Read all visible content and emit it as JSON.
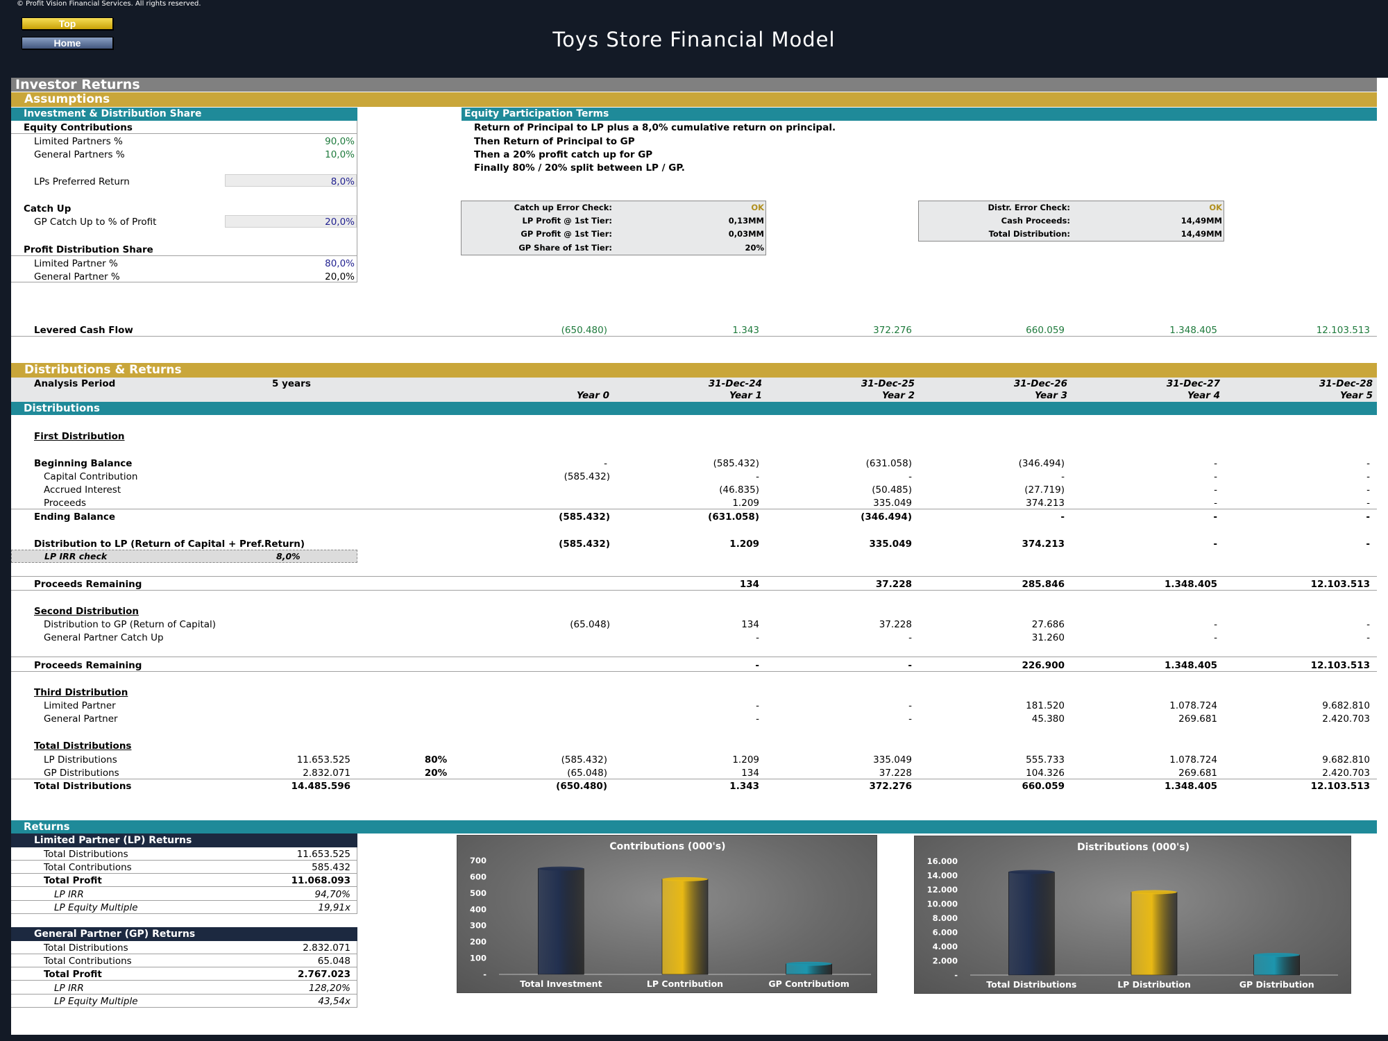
{
  "header": {
    "copyright": "© Profit Vision Financial Services. All rights reserved.",
    "top_button": "Top",
    "home_button": "Home",
    "title": "Toys Store Financial Model"
  },
  "sections": {
    "investor_returns": "Investor Returns",
    "assumptions": "Assumptions",
    "investment_distribution_share": "Investment & Distribution Share",
    "equity_participation_terms": "Equity Participation Terms",
    "distributions_returns": "Distributions & Returns",
    "distributions": "Distributions",
    "returns": "Returns"
  },
  "assumptions": {
    "equity_contributions": "Equity Contributions",
    "lp_pct_label": "Limited Partners %",
    "lp_pct": "90,0%",
    "gp_pct_label": "General Partners %",
    "gp_pct": "10,0%",
    "pref_return_label": "LPs Preferred Return",
    "pref_return": "8,0%",
    "catch_up": "Catch Up",
    "gp_catch_up_label": "GP Catch Up to % of Profit",
    "gp_catch_up": "20,0%",
    "profit_dist_share": "Profit Distribution Share",
    "lp_share_label": "Limited Partner %",
    "lp_share": "80,0%",
    "gp_share_label": "General Partner %",
    "gp_share": "20,0%"
  },
  "terms": {
    "line1": "Return of Principal to LP plus a 8,0% cumulative return on principal.",
    "line2": "Then Return of Principal to GP",
    "line3": "Then a 20% profit catch up for GP",
    "line4": "Finally 80% / 20% split between LP / GP."
  },
  "checkbox1": {
    "r1_label": "Catch up Error Check:",
    "r1_value": "OK",
    "r2_label": "LP Profit @ 1st Tier:",
    "r2_value": "0,13MM",
    "r3_label": "GP Profit @ 1st Tier:",
    "r3_value": "0,03MM",
    "r4_label": "GP Share of 1st Tier:",
    "r4_value": "20%"
  },
  "checkbox2": {
    "r1_label": "Distr. Error Check:",
    "r1_value": "OK",
    "r2_label": "Cash Proceeds:",
    "r2_value": "14,49MM",
    "r3_label": "Total Distribution:",
    "r3_value": "14,49MM"
  },
  "levered_cash_flow": {
    "label": "Levered Cash Flow",
    "values": [
      "(650.480)",
      "1.343",
      "372.276",
      "660.059",
      "1.348.405",
      "12.103.513"
    ]
  },
  "period": {
    "label": "Analysis Period",
    "value": "5 years",
    "dates": [
      "",
      "31-Dec-24",
      "31-Dec-25",
      "31-Dec-26",
      "31-Dec-27",
      "31-Dec-28"
    ],
    "years": [
      "Year 0",
      "Year 1",
      "Year 2",
      "Year 3",
      "Year 4",
      "Year 5"
    ]
  },
  "first_distribution": {
    "title": "First Distribution",
    "beginning_balance": {
      "label": "Beginning Balance",
      "values": [
        "-",
        "(585.432)",
        "(631.058)",
        "(346.494)",
        "-",
        "-"
      ]
    },
    "capital_contribution": {
      "label": "Capital Contribution",
      "values": [
        "(585.432)",
        "-",
        "-",
        "-",
        "-",
        "-"
      ]
    },
    "accrued_interest": {
      "label": "Accrued Interest",
      "values": [
        "",
        "(46.835)",
        "(50.485)",
        "(27.719)",
        "-",
        "-"
      ]
    },
    "proceeds": {
      "label": "Proceeds",
      "values": [
        "",
        "1.209",
        "335.049",
        "374.213",
        "-",
        "-"
      ]
    },
    "ending_balance": {
      "label": "Ending Balance",
      "values": [
        "(585.432)",
        "(631.058)",
        "(346.494)",
        "-",
        "-",
        "-"
      ]
    },
    "dist_to_lp": {
      "label": "Distribution to LP (Return of Capital + Pref.Return)",
      "values": [
        "(585.432)",
        "1.209",
        "335.049",
        "374.213",
        "-",
        "-"
      ]
    },
    "lp_irr_check_label": "LP IRR check",
    "lp_irr_check": "8,0%",
    "proceeds_remaining": {
      "label": "Proceeds Remaining",
      "values": [
        "",
        "134",
        "37.228",
        "285.846",
        "1.348.405",
        "12.103.513"
      ]
    }
  },
  "second_distribution": {
    "title": "Second Distribution",
    "dist_to_gp": {
      "label": "Distribution to GP (Return of Capital)",
      "values": [
        "(65.048)",
        "134",
        "37.228",
        "27.686",
        "-",
        "-"
      ]
    },
    "gp_catch_up": {
      "label": "General Partner Catch Up",
      "values": [
        "",
        "-",
        "-",
        "31.260",
        "-",
        "-"
      ]
    },
    "proceeds_remaining": {
      "label": "Proceeds Remaining",
      "values": [
        "",
        "-",
        "-",
        "226.900",
        "1.348.405",
        "12.103.513"
      ]
    }
  },
  "third_distribution": {
    "title": "Third Distribution",
    "lp": {
      "label": "Limited Partner",
      "values": [
        "",
        "-",
        "-",
        "181.520",
        "1.078.724",
        "9.682.810"
      ]
    },
    "gp": {
      "label": "General Partner",
      "values": [
        "",
        "-",
        "-",
        "45.380",
        "269.681",
        "2.420.703"
      ]
    }
  },
  "total_distributions": {
    "title": "Total Distributions",
    "lp": {
      "label": "LP Distributions",
      "total": "11.653.525",
      "pct": "80%",
      "values": [
        "(585.432)",
        "1.209",
        "335.049",
        "555.733",
        "1.078.724",
        "9.682.810"
      ]
    },
    "gp": {
      "label": "GP Distributions",
      "total": "2.832.071",
      "pct": "20%",
      "values": [
        "(65.048)",
        "134",
        "37.228",
        "104.326",
        "269.681",
        "2.420.703"
      ]
    },
    "total": {
      "label": "Total Distributions",
      "total": "14.485.596",
      "values": [
        "(650.480)",
        "1.343",
        "372.276",
        "660.059",
        "1.348.405",
        "12.103.513"
      ]
    }
  },
  "lp_returns": {
    "title": "Limited Partner (LP) Returns",
    "total_dist_label": "Total Distributions",
    "total_dist": "11.653.525",
    "total_contrib_label": "Total Contributions",
    "total_contrib": "585.432",
    "total_profit_label": "Total Profit",
    "total_profit": "11.068.093",
    "irr_label": "LP IRR",
    "irr": "94,70%",
    "multiple_label": "LP Equity Multiple",
    "multiple": "19,91x"
  },
  "gp_returns": {
    "title": "General Partner (GP) Returns",
    "total_dist_label": "Total Distributions",
    "total_dist": "2.832.071",
    "total_contrib_label": "Total Contributions",
    "total_contrib": "65.048",
    "total_profit_label": "Total Profit",
    "total_profit": "2.767.023",
    "irr_label": "LP IRR",
    "irr": "128,20%",
    "multiple_label": "LP Equity Multiple",
    "multiple": "43,54x"
  },
  "chart_data": [
    {
      "type": "bar",
      "title": "Contributions (000's)",
      "categories": [
        "Total Investment",
        "LP Contribution",
        "GP Contributiom"
      ],
      "values": [
        650.48,
        585.43,
        65.05
      ],
      "ylim": [
        0,
        700
      ],
      "yticks": [
        0,
        100,
        200,
        300,
        400,
        500,
        600,
        700
      ],
      "ytick_labels": [
        "-",
        "100",
        "200",
        "300",
        "400",
        "500",
        "600",
        "700"
      ],
      "colors": [
        "#22304f",
        "#e8b915",
        "#1d95ad"
      ]
    },
    {
      "type": "bar",
      "title": "Distributions (000's)",
      "categories": [
        "Total Distributions",
        "LP Distribution",
        "GP Distribution"
      ],
      "values": [
        14485.6,
        11653.5,
        2832.1
      ],
      "ylim": [
        0,
        16000
      ],
      "yticks": [
        0,
        2000,
        4000,
        6000,
        8000,
        10000,
        12000,
        14000,
        16000
      ],
      "ytick_labels": [
        "-",
        "2.000",
        "4.000",
        "6.000",
        "8.000",
        "10.000",
        "12.000",
        "14.000",
        "16.000"
      ],
      "colors": [
        "#22304f",
        "#e8b915",
        "#1d95ad"
      ]
    }
  ]
}
